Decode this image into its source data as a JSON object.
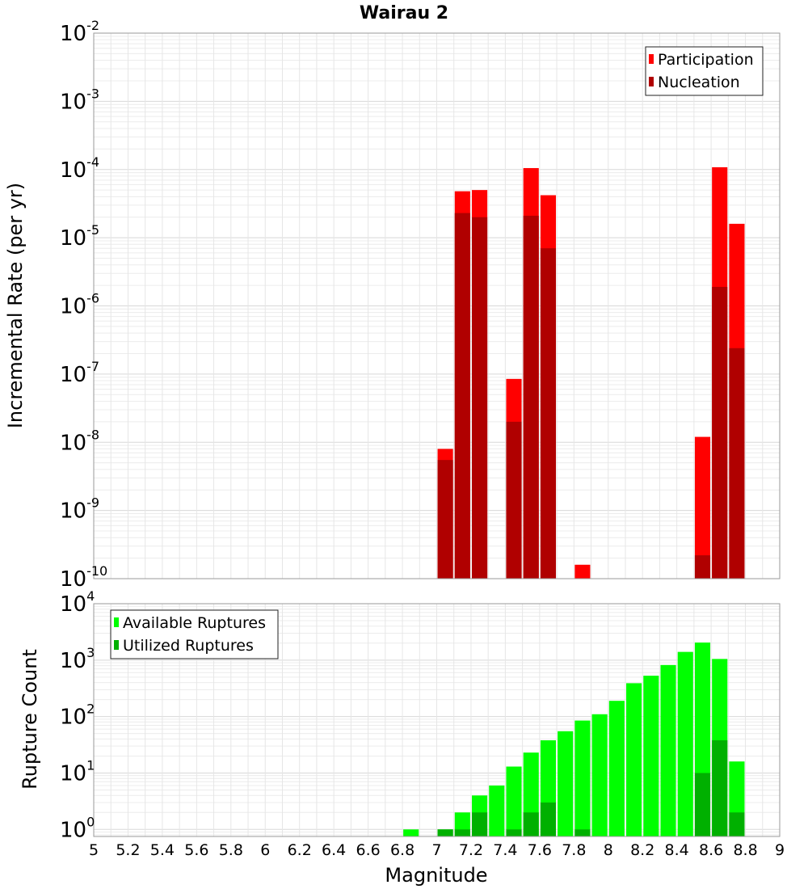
{
  "chart_data": [
    {
      "type": "bar",
      "title": "Wairau 2",
      "ylabel": "Incremental Rate (per yr)",
      "xlabel": "",
      "xlim": [
        5,
        9
      ],
      "ylim": [
        1e-10,
        0.01
      ],
      "yscale": "log",
      "grid": true,
      "legend": "top-right",
      "x": [
        7.05,
        7.15,
        7.25,
        7.45,
        7.55,
        7.65,
        7.85,
        8.55,
        8.65,
        8.75
      ],
      "series": [
        {
          "name": "Participation",
          "color": "#ff0000",
          "values": [
            8e-09,
            4.8e-05,
            5e-05,
            8.5e-08,
            0.000105,
            4.2e-05,
            1.6e-10,
            1.2e-08,
            0.000108,
            1.6e-05
          ]
        },
        {
          "name": "Nucleation",
          "color": "#b00000",
          "values": [
            5.5e-09,
            2.3e-05,
            2e-05,
            2e-08,
            2.1e-05,
            7e-06,
            null,
            2.2e-10,
            1.9e-06,
            2.4e-07
          ]
        }
      ]
    },
    {
      "type": "bar",
      "ylabel": "Rupture Count",
      "xlabel": "Magnitude",
      "xlim": [
        5,
        9
      ],
      "ylim": [
        0.75,
        10000.0
      ],
      "yscale": "log",
      "grid": true,
      "legend": "top-left",
      "x": [
        6.85,
        7.05,
        7.15,
        7.25,
        7.35,
        7.45,
        7.55,
        7.65,
        7.75,
        7.85,
        7.95,
        8.05,
        8.15,
        8.25,
        8.35,
        8.45,
        8.55,
        8.65,
        8.75
      ],
      "series": [
        {
          "name": "Available Ruptures",
          "color": "#00ff00",
          "values": [
            1,
            1,
            2,
            4,
            6,
            13,
            23,
            38,
            55,
            85,
            110,
            190,
            390,
            530,
            820,
            1400,
            2050,
            1050,
            16
          ]
        },
        {
          "name": "Utilized Ruptures",
          "color": "#00b000",
          "values": [
            null,
            1,
            1,
            2,
            null,
            1,
            2,
            3,
            null,
            1,
            null,
            null,
            null,
            null,
            null,
            null,
            10,
            38,
            2
          ]
        }
      ]
    }
  ],
  "axes": {
    "x_ticks": [
      "5",
      "5.2",
      "5.4",
      "5.6",
      "5.8",
      "6",
      "6.2",
      "6.4",
      "6.6",
      "6.8",
      "7",
      "7.2",
      "7.4",
      "7.6",
      "7.8",
      "8",
      "8.2",
      "8.4",
      "8.6",
      "8.8",
      "9"
    ],
    "top_y_ticks": [
      {
        "base": "10",
        "exp": "-2"
      },
      {
        "base": "10",
        "exp": "-3"
      },
      {
        "base": "10",
        "exp": "-4"
      },
      {
        "base": "10",
        "exp": "-5"
      },
      {
        "base": "10",
        "exp": "-6"
      },
      {
        "base": "10",
        "exp": "-7"
      },
      {
        "base": "10",
        "exp": "-8"
      },
      {
        "base": "10",
        "exp": "-9"
      },
      {
        "base": "10",
        "exp": "-10"
      }
    ],
    "bottom_y_ticks": [
      {
        "base": "10",
        "exp": "4"
      },
      {
        "base": "10",
        "exp": "3"
      },
      {
        "base": "10",
        "exp": "2"
      },
      {
        "base": "10",
        "exp": "1"
      },
      {
        "base": "10",
        "exp": "0"
      }
    ]
  }
}
